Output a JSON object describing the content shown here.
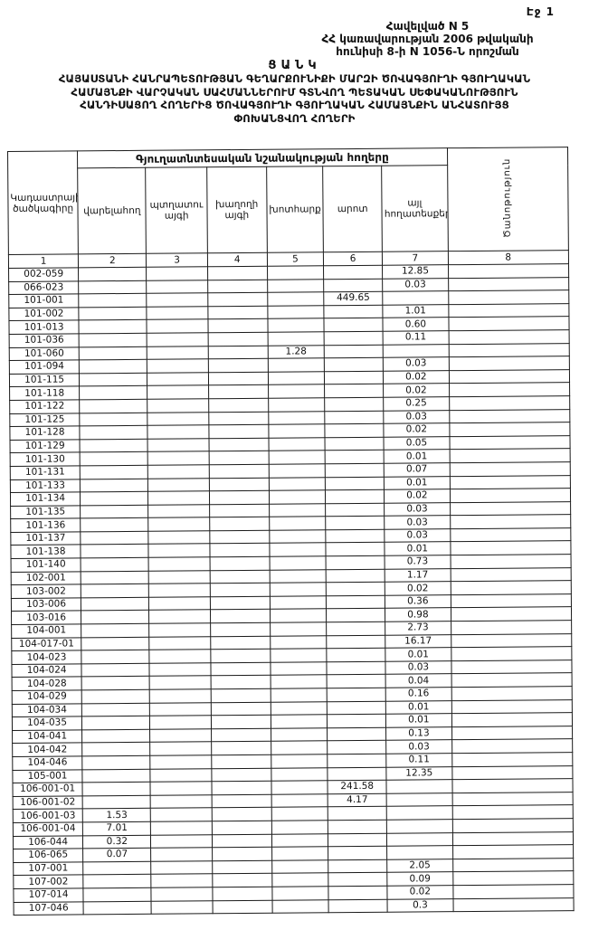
{
  "page": {
    "page_number_label": "Էջ 1"
  },
  "appendix": {
    "line1": "Հավելված N 5",
    "line2": "ՀՀ կառավարության 2006 թվականի",
    "line3": "հունիսի 8-ի N 1056-Ն որոշման"
  },
  "title": {
    "heading": "ՑԱՆԿ",
    "line1": "ՀԱՅԱՍՏԱՆԻ ՀԱՆՐԱՊԵՏՈՒԹՅԱՆ ԳԵՂԱՐՔՈՒՆԻՔԻ ՄԱՐԶԻ ԾՈՎԱԳՅՈՒՂԻ ԳՅՈՒՂԱԿԱՆ",
    "line2": "ՀԱՄԱՅՆՔԻ ՎԱՐՉԱԿԱՆ ՍԱՀՄԱՆՆԵՐՈՒՄ ԳՏՆՎՈՂ ՊԵՏԱԿԱՆ ՍԵՓԱԿԱՆՈՒԹՅՈՒՆ",
    "line3": "ՀԱՆԴԻՍԱՑՈՂ ՀՈՂԵՐԻՑ ԾՈՎԱԳՅՈՒՂԻ ԳՅՈՒՂԱԿԱՆ ՀԱՄԱՅՆՔԻՆ ԱՆՀԱՏՈՒՅՑ",
    "line4": "ՓՈԽԱՆՑՎՈՂ ՀՈՂԵՐԻ"
  },
  "table": {
    "group_header": "Գյուղատնտեսական նշանակության հողերը",
    "columns": [
      {
        "num": "1",
        "label": "Կադաստրային ծածկագիրը"
      },
      {
        "num": "2",
        "label": "վարելահող"
      },
      {
        "num": "3",
        "label": "պտղատու այգի"
      },
      {
        "num": "4",
        "label": "խաղողի այգի"
      },
      {
        "num": "5",
        "label": "խոտհարք"
      },
      {
        "num": "6",
        "label": "արոտ"
      },
      {
        "num": "7",
        "label": "այլ հողատեսքեր"
      },
      {
        "num": "8",
        "label": "Ծանոթություն"
      }
    ],
    "rows": [
      {
        "code": "002-059",
        "values": [
          "",
          "",
          "",
          "",
          "",
          "12.85",
          ""
        ]
      },
      {
        "code": "066-023",
        "values": [
          "",
          "",
          "",
          "",
          "",
          "0.03",
          ""
        ]
      },
      {
        "code": "101-001",
        "values": [
          "",
          "",
          "",
          "",
          "449.65",
          "",
          ""
        ]
      },
      {
        "code": "101-002",
        "values": [
          "",
          "",
          "",
          "",
          "",
          "1.01",
          ""
        ]
      },
      {
        "code": "101-013",
        "values": [
          "",
          "",
          "",
          "",
          "",
          "0.60",
          ""
        ]
      },
      {
        "code": "101-036",
        "values": [
          "",
          "",
          "",
          "",
          "",
          "0.11",
          ""
        ]
      },
      {
        "code": "101-060",
        "values": [
          "",
          "",
          "",
          "1.28",
          "",
          "",
          ""
        ]
      },
      {
        "code": "101-094",
        "values": [
          "",
          "",
          "",
          "",
          "",
          "0.03",
          ""
        ]
      },
      {
        "code": "101-115",
        "values": [
          "",
          "",
          "",
          "",
          "",
          "0.02",
          ""
        ]
      },
      {
        "code": "101-118",
        "values": [
          "",
          "",
          "",
          "",
          "",
          "0.02",
          ""
        ]
      },
      {
        "code": "101-122",
        "values": [
          "",
          "",
          "",
          "",
          "",
          "0.25",
          ""
        ]
      },
      {
        "code": "101-125",
        "values": [
          "",
          "",
          "",
          "",
          "",
          "0.03",
          ""
        ]
      },
      {
        "code": "101-128",
        "values": [
          "",
          "",
          "",
          "",
          "",
          "0.02",
          ""
        ]
      },
      {
        "code": "101-129",
        "values": [
          "",
          "",
          "",
          "",
          "",
          "0.05",
          ""
        ]
      },
      {
        "code": "101-130",
        "values": [
          "",
          "",
          "",
          "",
          "",
          "0.01",
          ""
        ]
      },
      {
        "code": "101-131",
        "values": [
          "",
          "",
          "",
          "",
          "",
          "0.07",
          ""
        ]
      },
      {
        "code": "101-133",
        "values": [
          "",
          "",
          "",
          "",
          "",
          "0.01",
          ""
        ]
      },
      {
        "code": "101-134",
        "values": [
          "",
          "",
          "",
          "",
          "",
          "0.02",
          ""
        ]
      },
      {
        "code": "101-135",
        "values": [
          "",
          "",
          "",
          "",
          "",
          "0.03",
          ""
        ]
      },
      {
        "code": "101-136",
        "values": [
          "",
          "",
          "",
          "",
          "",
          "0.03",
          ""
        ]
      },
      {
        "code": "101-137",
        "values": [
          "",
          "",
          "",
          "",
          "",
          "0.03",
          ""
        ]
      },
      {
        "code": "101-138",
        "values": [
          "",
          "",
          "",
          "",
          "",
          "0.01",
          ""
        ]
      },
      {
        "code": "101-140",
        "values": [
          "",
          "",
          "",
          "",
          "",
          "0.73",
          ""
        ]
      },
      {
        "code": "102-001",
        "values": [
          "",
          "",
          "",
          "",
          "",
          "1.17",
          ""
        ]
      },
      {
        "code": "103-002",
        "values": [
          "",
          "",
          "",
          "",
          "",
          "0.02",
          ""
        ]
      },
      {
        "code": "103-006",
        "values": [
          "",
          "",
          "",
          "",
          "",
          "0.36",
          ""
        ]
      },
      {
        "code": "103-016",
        "values": [
          "",
          "",
          "",
          "",
          "",
          "0.98",
          ""
        ]
      },
      {
        "code": "104-001",
        "values": [
          "",
          "",
          "",
          "",
          "",
          "2.73",
          ""
        ]
      },
      {
        "code": "104-017-01",
        "values": [
          "",
          "",
          "",
          "",
          "",
          "16.17",
          ""
        ]
      },
      {
        "code": "104-023",
        "values": [
          "",
          "",
          "",
          "",
          "",
          "0.01",
          ""
        ]
      },
      {
        "code": "104-024",
        "values": [
          "",
          "",
          "",
          "",
          "",
          "0.03",
          ""
        ]
      },
      {
        "code": "104-028",
        "values": [
          "",
          "",
          "",
          "",
          "",
          "0.04",
          ""
        ]
      },
      {
        "code": "104-029",
        "values": [
          "",
          "",
          "",
          "",
          "",
          "0.16",
          ""
        ]
      },
      {
        "code": "104-034",
        "values": [
          "",
          "",
          "",
          "",
          "",
          "0.01",
          ""
        ]
      },
      {
        "code": "104-035",
        "values": [
          "",
          "",
          "",
          "",
          "",
          "0.01",
          ""
        ]
      },
      {
        "code": "104-041",
        "values": [
          "",
          "",
          "",
          "",
          "",
          "0.13",
          ""
        ]
      },
      {
        "code": "104-042",
        "values": [
          "",
          "",
          "",
          "",
          "",
          "0.03",
          ""
        ]
      },
      {
        "code": "104-046",
        "values": [
          "",
          "",
          "",
          "",
          "",
          "0.11",
          ""
        ]
      },
      {
        "code": "105-001",
        "values": [
          "",
          "",
          "",
          "",
          "",
          "12.35",
          ""
        ]
      },
      {
        "code": "106-001-01",
        "values": [
          "",
          "",
          "",
          "",
          "241.58",
          "",
          ""
        ]
      },
      {
        "code": "106-001-02",
        "values": [
          "",
          "",
          "",
          "",
          "4.17",
          "",
          ""
        ]
      },
      {
        "code": "106-001-03",
        "values": [
          "1.53",
          "",
          "",
          "",
          "",
          "",
          ""
        ]
      },
      {
        "code": "106-001-04",
        "values": [
          "7.01",
          "",
          "",
          "",
          "",
          "",
          ""
        ]
      },
      {
        "code": "106-044",
        "values": [
          "0.32",
          "",
          "",
          "",
          "",
          "",
          ""
        ]
      },
      {
        "code": "106-065",
        "values": [
          "0.07",
          "",
          "",
          "",
          "",
          "",
          ""
        ]
      },
      {
        "code": "107-001",
        "values": [
          "",
          "",
          "",
          "",
          "",
          "2.05",
          ""
        ]
      },
      {
        "code": "107-002",
        "values": [
          "",
          "",
          "",
          "",
          "",
          "0.09",
          ""
        ]
      },
      {
        "code": "107-014",
        "values": [
          "",
          "",
          "",
          "",
          "",
          "0.02",
          ""
        ]
      },
      {
        "code": "107-046",
        "values": [
          "",
          "",
          "",
          "",
          "",
          "0.3",
          ""
        ]
      }
    ]
  }
}
